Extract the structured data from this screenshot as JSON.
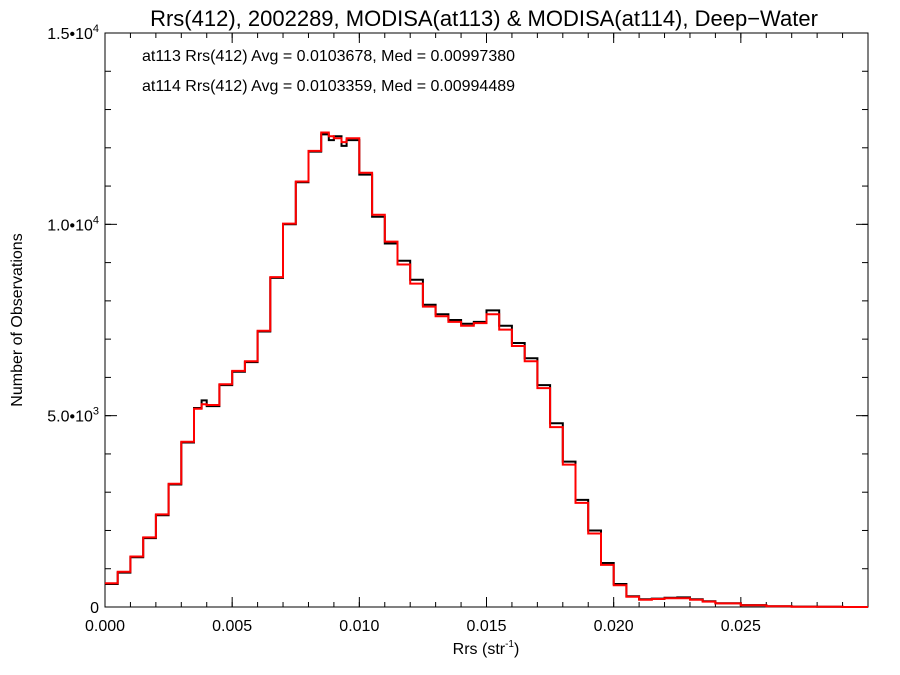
{
  "chart_data": {
    "type": "line",
    "title": "Rrs(412), 2002289, MODISA(at113) & MODISA(at114), Deep−Water",
    "xlabel": "Rrs (str",
    "xlabel_sup": "-1",
    "xlabel_close": ")",
    "ylabel": "Number of Observations",
    "xlim": [
      0.0,
      0.03
    ],
    "ylim": [
      0,
      15000
    ],
    "x_ticks": [
      {
        "value": 0.0,
        "label": "0.000"
      },
      {
        "value": 0.005,
        "label": "0.005"
      },
      {
        "value": 0.01,
        "label": "0.010"
      },
      {
        "value": 0.015,
        "label": "0.015"
      },
      {
        "value": 0.02,
        "label": "0.020"
      },
      {
        "value": 0.025,
        "label": "0.025"
      }
    ],
    "y_ticks": [
      {
        "value": 0,
        "label": "0",
        "sup": ""
      },
      {
        "value": 5000,
        "label": "5.0•10",
        "sup": "3"
      },
      {
        "value": 10000,
        "label": "1.0•10",
        "sup": "4"
      },
      {
        "value": 15000,
        "label": "1.5•10",
        "sup": "4"
      }
    ],
    "x_minor_step": 0.001,
    "y_minor_step": 1000,
    "legend": [
      {
        "text": "at113 Rrs(412) Avg = 0.0103678, Med = 0.00997380",
        "color": "#000000"
      },
      {
        "text": "at114 Rrs(412) Avg = 0.0103359, Med = 0.00994489",
        "color": "#ff0000"
      }
    ],
    "legend_position": "top-left",
    "series": [
      {
        "color": "#000000",
        "x": [
          0.0,
          0.0005,
          0.001,
          0.0015,
          0.002,
          0.0025,
          0.003,
          0.0035,
          0.0038,
          0.004,
          0.0045,
          0.005,
          0.0055,
          0.006,
          0.0065,
          0.007,
          0.0075,
          0.008,
          0.0085,
          0.0088,
          0.009,
          0.0093,
          0.0095,
          0.01,
          0.0105,
          0.011,
          0.0115,
          0.012,
          0.0125,
          0.013,
          0.0135,
          0.014,
          0.0145,
          0.015,
          0.0155,
          0.016,
          0.0165,
          0.017,
          0.0175,
          0.018,
          0.0185,
          0.019,
          0.0195,
          0.02,
          0.0205,
          0.021,
          0.0215,
          0.022,
          0.0225,
          0.023,
          0.0235,
          0.024,
          0.025,
          0.026,
          0.027,
          0.028,
          0.029,
          0.03
        ],
        "y": [
          600,
          900,
          1300,
          1800,
          2400,
          3200,
          4300,
          5200,
          5400,
          5250,
          5800,
          6150,
          6400,
          7200,
          8600,
          10000,
          11100,
          11900,
          12350,
          12200,
          12300,
          12050,
          12200,
          11300,
          10200,
          9500,
          9050,
          8550,
          7900,
          7650,
          7500,
          7400,
          7450,
          7750,
          7350,
          6900,
          6500,
          5800,
          4800,
          3800,
          2800,
          2000,
          1150,
          600,
          280,
          200,
          220,
          240,
          250,
          200,
          150,
          100,
          50,
          20,
          10,
          5,
          0,
          0
        ]
      },
      {
        "color": "#ff0000",
        "x": [
          0.0,
          0.0005,
          0.001,
          0.0015,
          0.002,
          0.0025,
          0.003,
          0.0035,
          0.0038,
          0.004,
          0.0045,
          0.005,
          0.0055,
          0.006,
          0.0065,
          0.007,
          0.0075,
          0.008,
          0.0085,
          0.0088,
          0.009,
          0.0093,
          0.0095,
          0.01,
          0.0105,
          0.011,
          0.0115,
          0.012,
          0.0125,
          0.013,
          0.0135,
          0.014,
          0.0145,
          0.015,
          0.0155,
          0.016,
          0.0165,
          0.017,
          0.0175,
          0.018,
          0.0185,
          0.019,
          0.0195,
          0.02,
          0.0205,
          0.021,
          0.0215,
          0.022,
          0.0225,
          0.023,
          0.0235,
          0.024,
          0.025,
          0.026,
          0.027,
          0.028,
          0.029,
          0.03
        ],
        "y": [
          620,
          920,
          1320,
          1820,
          2420,
          3220,
          4320,
          5180,
          5300,
          5280,
          5820,
          6170,
          6420,
          7220,
          8620,
          10020,
          11120,
          11920,
          12400,
          12300,
          12250,
          12150,
          12250,
          11350,
          10250,
          9550,
          8950,
          8450,
          7850,
          7600,
          7450,
          7350,
          7420,
          7650,
          7250,
          6820,
          6420,
          5720,
          4700,
          3720,
          2720,
          1920,
          1100,
          570,
          270,
          190,
          210,
          230,
          230,
          190,
          140,
          95,
          48,
          18,
          9,
          4,
          0,
          0
        ]
      }
    ]
  }
}
